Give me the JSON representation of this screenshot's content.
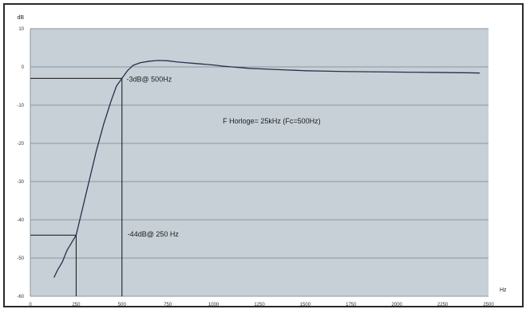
{
  "chart_data": {
    "type": "line",
    "title": "",
    "y_unit": "dB",
    "x_unit": "Hz",
    "xlim": [
      0,
      2500
    ],
    "ylim": [
      -60,
      10
    ],
    "y_ticks": [
      "10",
      "0",
      "-10",
      "-20",
      "-30",
      "-40",
      "-50",
      "-60"
    ],
    "x_ticks": [
      "0",
      "250",
      "500",
      "750",
      "1000",
      "1250",
      "1500",
      "1750",
      "2000",
      "2250",
      "2500"
    ],
    "grid": true,
    "background": "#c7d0d6",
    "line_color": "#2b2c4c",
    "guide_color": "#111111",
    "series": [
      {
        "points": [
          [
            130,
            -55
          ],
          [
            150,
            -53
          ],
          [
            175,
            -51
          ],
          [
            200,
            -48
          ],
          [
            225,
            -46
          ],
          [
            250,
            -44
          ],
          [
            270,
            -40
          ],
          [
            300,
            -34
          ],
          [
            330,
            -28
          ],
          [
            360,
            -22
          ],
          [
            400,
            -15
          ],
          [
            440,
            -9
          ],
          [
            470,
            -5
          ],
          [
            500,
            -3
          ],
          [
            530,
            -1
          ],
          [
            560,
            0.4
          ],
          [
            600,
            1.1
          ],
          [
            650,
            1.5
          ],
          [
            700,
            1.7
          ],
          [
            750,
            1.6
          ],
          [
            800,
            1.3
          ],
          [
            850,
            1.1
          ],
          [
            900,
            0.9
          ],
          [
            950,
            0.7
          ],
          [
            1000,
            0.5
          ],
          [
            1050,
            0.2
          ],
          [
            1100,
            0
          ],
          [
            1150,
            -0.2
          ],
          [
            1200,
            -0.4
          ],
          [
            1250,
            -0.5
          ],
          [
            1300,
            -0.6
          ],
          [
            1350,
            -0.7
          ],
          [
            1400,
            -0.8
          ],
          [
            1450,
            -0.9
          ],
          [
            1500,
            -1
          ],
          [
            1600,
            -1.1
          ],
          [
            1700,
            -1.2
          ],
          [
            1800,
            -1.25
          ],
          [
            1900,
            -1.3
          ],
          [
            2000,
            -1.35
          ],
          [
            2100,
            -1.4
          ],
          [
            2200,
            -1.45
          ],
          [
            2300,
            -1.5
          ],
          [
            2400,
            -1.55
          ],
          [
            2450,
            -1.6
          ]
        ]
      }
    ],
    "guides": [
      {
        "x": 500,
        "y": -3
      },
      {
        "x": 250,
        "y": -44
      }
    ],
    "annotations": [
      {
        "text": "-3dB@ 500Hz",
        "x": 525,
        "y": -3
      },
      {
        "text": "F Horloge= 25kHz (Fc=500Hz)",
        "x": 1050,
        "y": -14
      },
      {
        "text": "-44dB@ 250 Hz",
        "x": 530,
        "y": -43.5
      }
    ]
  }
}
